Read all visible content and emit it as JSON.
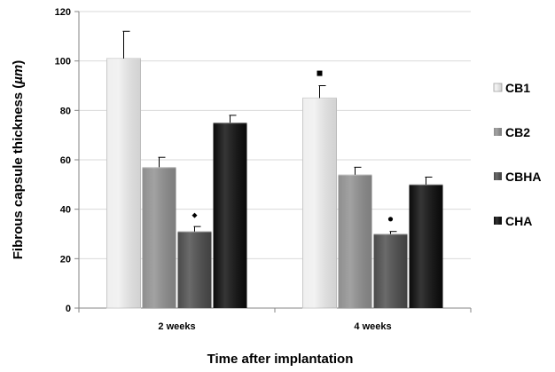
{
  "chart_data": {
    "type": "bar",
    "xlabel": "Time after implantation",
    "ylabel_prefix": "Fibrous capsule thickness (",
    "ylabel_unit": "µm",
    "ylabel_suffix": ")",
    "categories": [
      "2 weeks",
      "4 weeks"
    ],
    "ylim": [
      0,
      120
    ],
    "yticks": [
      0,
      20,
      40,
      60,
      80,
      100,
      120
    ],
    "grid": true,
    "legend_position": "right",
    "series": [
      {
        "name": "CB1",
        "color": "#efefef",
        "values": [
          101,
          85
        ],
        "errors": [
          11,
          5
        ]
      },
      {
        "name": "CB2",
        "color": "#8e8e8e",
        "values": [
          57,
          54
        ],
        "errors": [
          4,
          3
        ]
      },
      {
        "name": "CBHA",
        "color": "#4a4a4a",
        "values": [
          31,
          30
        ],
        "errors": [
          2,
          1
        ]
      },
      {
        "name": "CHA",
        "color": "#0a0a0a",
        "values": [
          75,
          50
        ],
        "errors": [
          3,
          3
        ]
      }
    ],
    "annotations": [
      {
        "category": 0,
        "series": "CBHA",
        "symbol": "diamond",
        "y": 37.5
      },
      {
        "category": 1,
        "series": "CB1",
        "symbol": "square",
        "y": 95
      },
      {
        "category": 1,
        "series": "CBHA",
        "symbol": "circle",
        "y": 36
      }
    ]
  }
}
